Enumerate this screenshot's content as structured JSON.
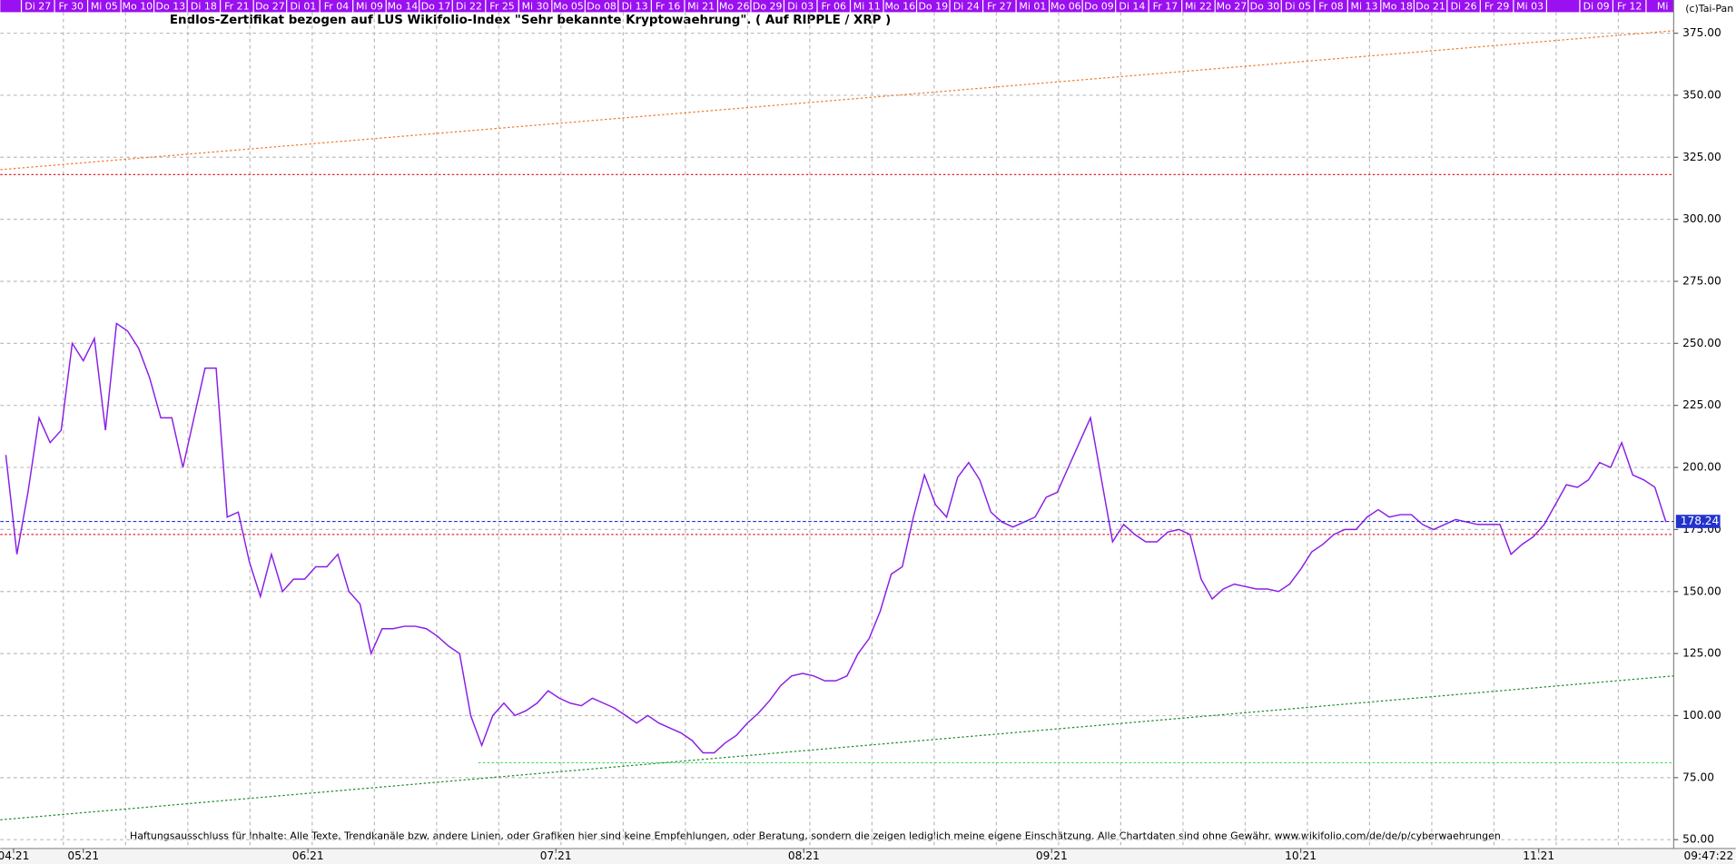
{
  "chart_data": {
    "type": "line",
    "title": "Endlos-Zertifikat bezogen auf LUS Wikifolio-Index \"Sehr bekannte Kryptowaehrung\". ( Auf RIPPLE / XRP )",
    "copyright": "(c)Tai-Pan",
    "disclaimer": "Haftungsausschluss für Inhalte: Alle Texte, Trendkanäle bzw. andere Linien, oder Grafiken hier sind keine Empfehlungen, oder Beratung, sondern die zeigen lediglich meine eigene Einschätzung. Alle Chartdaten sind ohne Gewähr.  www.wikifolio.com/de/de/p/cyberwaehrungen",
    "time": "09:47:22",
    "top_labels": [
      "Di 27",
      "Fr 30",
      "Mi 05",
      "Mo 10",
      "Do 13",
      "Di 18",
      "Fr 21",
      "Do 27",
      "Di 01",
      "Fr 04",
      "Mi 09",
      "Mo 14",
      "Do 17",
      "Di 22",
      "Fr 25",
      "Mi 30",
      "Mo 05",
      "Do 08",
      "Di 13",
      "Fr 16",
      "Mi 21",
      "Mo 26",
      "Do 29",
      "Di 03",
      "Fr 06",
      "Mi 11",
      "Mo 16",
      "Do 19",
      "Di 24",
      "Fr 27",
      "Mi 01",
      "Mo 06",
      "Do 09",
      "Di 14",
      "Fr 17",
      "Mi 22",
      "Mo 27",
      "Do 30",
      "Di 05",
      "Fr 08",
      "Mi 13",
      "Mo 18",
      "Do 21",
      "Di 26",
      "Fr 29",
      "Mi 03",
      null,
      "Di 09",
      "Fr 12",
      "Mi"
    ],
    "series": [
      {
        "color": "#8a1ee6",
        "values": [
          205,
          165,
          190,
          220,
          210,
          215,
          250,
          243,
          252,
          215,
          258,
          255,
          248,
          236,
          220,
          220,
          200,
          220,
          240,
          240,
          180,
          182,
          162,
          148,
          165,
          150,
          155,
          155,
          160,
          160,
          165,
          150,
          145,
          125,
          135,
          135,
          136,
          136,
          135,
          132,
          128,
          125,
          100,
          88,
          100,
          105,
          100,
          102,
          105,
          110,
          107,
          105,
          104,
          107,
          105,
          103,
          100,
          97,
          100,
          97,
          95,
          93,
          90,
          85,
          85,
          89,
          92,
          97,
          101,
          106,
          112,
          116,
          117,
          116,
          114,
          114,
          116,
          125,
          131,
          142,
          157,
          160,
          180,
          197,
          185,
          180,
          196,
          202,
          195,
          182,
          178,
          176,
          178,
          180,
          188,
          190,
          200,
          210,
          220,
          195,
          170,
          177,
          173,
          170,
          170,
          174,
          175,
          173,
          155,
          147,
          151,
          153,
          152,
          151,
          151,
          150,
          153,
          159,
          166,
          169,
          173,
          175,
          175,
          180,
          183,
          180,
          181,
          181,
          177,
          175,
          177,
          179,
          178,
          177,
          177,
          177,
          165,
          169,
          172,
          177,
          185,
          193,
          192,
          195,
          202,
          200,
          210,
          197,
          195,
          192,
          178
        ]
      }
    ],
    "last_price": 178.24,
    "levels": [
      {
        "value": 318,
        "color": "#e8202a"
      },
      {
        "value": 173,
        "color": "#e8202a"
      },
      {
        "value": 81,
        "color": "#33dd55",
        "from": 42.7
      }
    ],
    "trendlines": [
      {
        "start": 320,
        "end": 376,
        "color": "#f07a30"
      },
      {
        "start": 58,
        "end": 116,
        "color": "#1f8a2a"
      }
    ],
    "xlim": [
      0,
      150
    ],
    "xticks": [
      {
        "value": 0.7,
        "label": "04.21"
      },
      {
        "value": 7,
        "label": "05.21"
      },
      {
        "value": 27.3,
        "label": "06.21"
      },
      {
        "value": 49.7,
        "label": "07.21"
      },
      {
        "value": 72.1,
        "label": "08.21"
      },
      {
        "value": 94.5,
        "label": "09.21"
      },
      {
        "value": 117,
        "label": "10.21"
      },
      {
        "value": 138.5,
        "label": "11.21"
      }
    ],
    "ylim": [
      50,
      375
    ],
    "yticks": [
      {
        "value": 50,
        "label": "50.00"
      },
      {
        "value": 75,
        "label": "75.00"
      },
      {
        "value": 100,
        "label": "100.00"
      },
      {
        "value": 125,
        "label": "125.00"
      },
      {
        "value": 150,
        "label": "150.00"
      },
      {
        "value": 175,
        "label": "175.00"
      },
      {
        "value": 200,
        "label": "200.00"
      },
      {
        "value": 225,
        "label": "225.00"
      },
      {
        "value": 250,
        "label": "250.00"
      },
      {
        "value": 275,
        "label": "275.00"
      },
      {
        "value": 300,
        "label": "300.00"
      },
      {
        "value": 325,
        "label": "325.00"
      },
      {
        "value": 350,
        "label": "350.00"
      },
      {
        "value": 375,
        "label": "375.00"
      }
    ],
    "grid": true
  }
}
